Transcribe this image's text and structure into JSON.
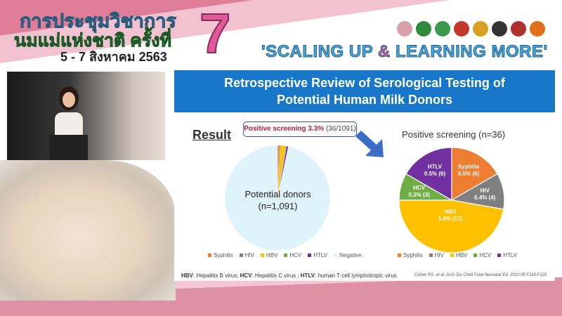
{
  "header": {
    "title_line1": "การประชุมวิชาการ",
    "title_line2": "นมแม่แห่งชาติ ครั้งที่",
    "edition": "7",
    "date": "5 - 7 สิงหาคม 2563",
    "slogan_part1": "'SCALING UP ",
    "slogan_amp": "&",
    "slogan_part2": " LEARNING MORE'"
  },
  "logos": [
    "#d9a0a8",
    "#2f8a3a",
    "#3a9a4a",
    "#c0392b",
    "#d8a020",
    "#333333",
    "#b03030",
    "#e0701a"
  ],
  "slide": {
    "title_line1": "Retrospective Review of Serological Testing of",
    "title_line2": "Potential Human Milk Donors",
    "result_heading": "Result",
    "callout_bold": "Positive screening 3.3%",
    "callout_rest": " (36/1091)",
    "footnote": {
      "hbv_abbr": "HBV",
      "hbv_def": ": Hepatitis B virus; ",
      "hcv_abbr": "HCV",
      "hcv_def": ": Hepatitis C virus ; ",
      "htlv_abbr": "HTLV",
      "htlv_def": ": human T cell lymphotropic virus"
    },
    "citation": "Cohen RS, et al. Arch Dis Child Fetal Neonatal Ed. 2010;95:F118-F120."
  },
  "chart_data": [
    {
      "type": "pie",
      "center_label_line1": "Potential donors",
      "center_label_line2": "(n=1,091)",
      "categories": [
        "Syphilis",
        "HIV",
        "HBV",
        "HCV",
        "HTLV",
        "Negative"
      ],
      "values": [
        6,
        4,
        17,
        3,
        6,
        1055
      ],
      "colors": [
        "#ed7d31",
        "#7f7f7f",
        "#ffc000",
        "#70ad47",
        "#7030a0",
        "#dff3fb"
      ],
      "legend": "bottom"
    },
    {
      "type": "pie",
      "title": "Positive screening (n=36)",
      "categories": [
        "Syphilis",
        "HIV",
        "HBV",
        "HCV",
        "HTLV"
      ],
      "values": [
        6,
        4,
        17,
        3,
        6
      ],
      "labels": [
        [
          "Syphilis",
          "0.5% (6)"
        ],
        [
          "HIV",
          "0.4% (4)"
        ],
        [
          "HBV",
          "1.6% (17)"
        ],
        [
          "HCV",
          "0.3% (3)"
        ],
        [
          "HTLV",
          "0.5% (6)"
        ]
      ],
      "colors": [
        "#ed7d31",
        "#7f7f7f",
        "#ffc000",
        "#70ad47",
        "#7030a0"
      ],
      "legend": "bottom"
    }
  ]
}
